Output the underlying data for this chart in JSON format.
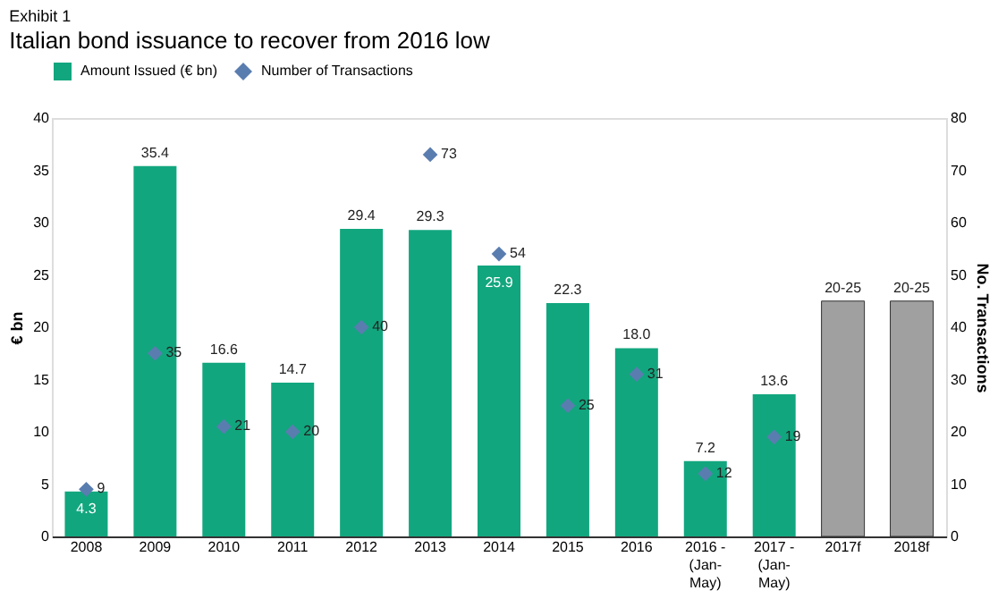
{
  "chart_data": {
    "type": "bar",
    "title": "Italian bond issuance to recover from 2016 low",
    "subtitle": "Exhibit 1",
    "ylabel": "€ bn",
    "y2label": "No. Transactions",
    "categories": [
      "2008",
      "2009",
      "2010",
      "2011",
      "2012",
      "2013",
      "2014",
      "2015",
      "2016",
      "2016 - (Jan-May)",
      "2017 - (Jan-May)",
      "2017f",
      "2018f"
    ],
    "series": [
      {
        "name": "Amount Issued (€ bn)",
        "type": "bar",
        "color": "#12a67e",
        "values": [
          4.3,
          35.4,
          16.6,
          14.7,
          29.4,
          29.3,
          25.9,
          22.3,
          18.0,
          7.2,
          13.6,
          null,
          null
        ],
        "value_labels": [
          "4.3",
          "35.4",
          "16.6",
          "14.7",
          "29.4",
          "29.3",
          "25.9",
          "22.3",
          "18.0",
          "7.2",
          "13.6",
          null,
          null
        ]
      },
      {
        "type": "bar",
        "color": "#a0a0a0",
        "values": [
          null,
          null,
          null,
          null,
          null,
          null,
          null,
          null,
          null,
          null,
          null,
          22.5,
          22.5
        ],
        "value_labels": [
          null,
          null,
          null,
          null,
          null,
          null,
          null,
          null,
          null,
          null,
          null,
          "20-25",
          "20-25"
        ]
      },
      {
        "name": "Number of Transactions",
        "type": "scatter",
        "axis": "y2",
        "marker": "diamond",
        "color": "#5a7db0",
        "values": [
          9,
          35,
          21,
          20,
          40,
          73,
          54,
          25,
          31,
          12,
          19,
          null,
          null
        ],
        "value_labels": [
          "9",
          "35",
          "21",
          "20",
          "40",
          "73",
          "54",
          "25",
          "31",
          "12",
          "19",
          null,
          null
        ]
      }
    ],
    "ylim": [
      0,
      40
    ],
    "yticks": [
      0,
      5,
      10,
      15,
      20,
      25,
      30,
      35,
      40
    ],
    "y2lim": [
      0,
      80
    ],
    "y2ticks": [
      0,
      10,
      20,
      30,
      40,
      50,
      60,
      70,
      80
    ],
    "grid": false,
    "legend": "top"
  }
}
